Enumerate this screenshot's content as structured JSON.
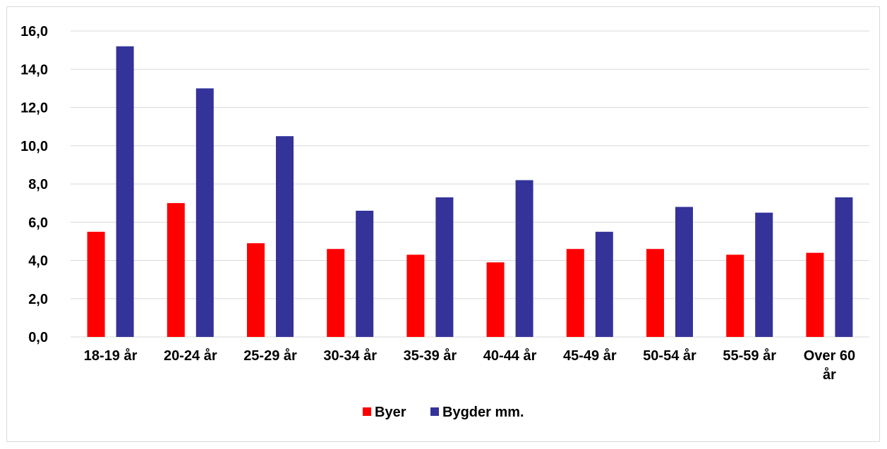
{
  "chart_data": {
    "type": "bar",
    "title": "",
    "xlabel": "",
    "ylabel": "",
    "categories": [
      "18-19 år",
      "20-24 år",
      "25-29 år",
      "30-34 år",
      "35-39 år",
      "40-44 år",
      "45-49 år",
      "50-54 år",
      "55-59 år",
      "Over 60 år"
    ],
    "series": [
      {
        "name": "Byer",
        "color": "#ff0000",
        "values": [
          5.5,
          7.0,
          4.9,
          4.6,
          4.3,
          3.9,
          4.6,
          4.6,
          4.3,
          4.4
        ]
      },
      {
        "name": "Bygder mm.",
        "color": "#333399",
        "values": [
          15.2,
          13.0,
          10.5,
          6.6,
          7.3,
          8.2,
          5.5,
          6.8,
          6.5,
          7.3
        ]
      }
    ],
    "ylim": [
      0,
      16
    ],
    "yticks": [
      "0,0",
      "2,0",
      "4,0",
      "6,0",
      "8,0",
      "10,0",
      "12,0",
      "14,0",
      "16,0"
    ],
    "grid": true,
    "gridColor": "#d9d9d9",
    "legend_position": "bottom"
  }
}
